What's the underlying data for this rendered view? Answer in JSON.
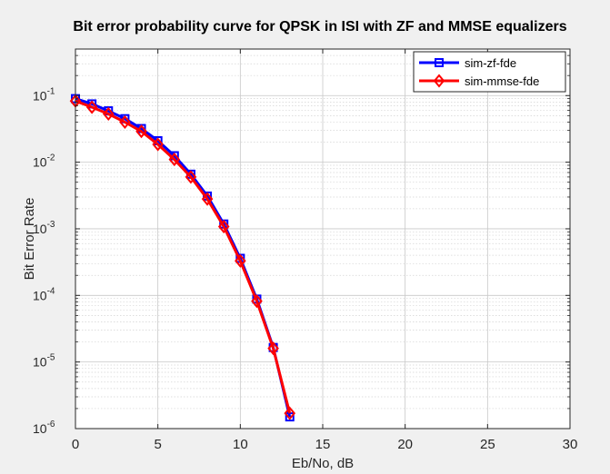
{
  "chart_data": {
    "type": "line",
    "title": "Bit error probability curve for QPSK in ISI with ZF and MMSE equalizers",
    "xlabel": "Eb/No, dB",
    "ylabel": "Bit Error Rate",
    "xlim": [
      0,
      30
    ],
    "ylim": [
      1e-06,
      0.5
    ],
    "yscale": "log",
    "grid": true,
    "minor_grid": true,
    "legend_position": "top-right",
    "x_ticks": [
      0,
      5,
      10,
      15,
      20,
      25,
      30
    ],
    "x_tick_labels": [
      "0",
      "5",
      "10",
      "15",
      "20",
      "25",
      "30"
    ],
    "y_ticks": [
      {
        "value": 1e-06,
        "base": "10",
        "exp": "-6"
      },
      {
        "value": 1e-05,
        "base": "10",
        "exp": "-5"
      },
      {
        "value": 0.0001,
        "base": "10",
        "exp": "-4"
      },
      {
        "value": 0.001,
        "base": "10",
        "exp": "-3"
      },
      {
        "value": 0.01,
        "base": "10",
        "exp": "-2"
      },
      {
        "value": 0.1,
        "base": "10",
        "exp": "-1"
      }
    ],
    "x": [
      0,
      1,
      2,
      3,
      4,
      5,
      6,
      7,
      8,
      9,
      10,
      11,
      12,
      13
    ],
    "series": [
      {
        "name": "sim-zf-fde",
        "color": "#0000ff",
        "marker": "square",
        "values": [
          0.09,
          0.075,
          0.059,
          0.045,
          0.032,
          0.021,
          0.0125,
          0.0066,
          0.0031,
          0.00118,
          0.00036,
          8.8e-05,
          1.65e-05,
          1.5e-06
        ]
      },
      {
        "name": "sim-mmse-fde",
        "color": "#ff0000",
        "marker": "diamond",
        "values": [
          0.083,
          0.067,
          0.053,
          0.04,
          0.029,
          0.0185,
          0.011,
          0.006,
          0.0028,
          0.00108,
          0.00033,
          8.2e-05,
          1.6e-05,
          1.7e-06
        ]
      }
    ]
  }
}
